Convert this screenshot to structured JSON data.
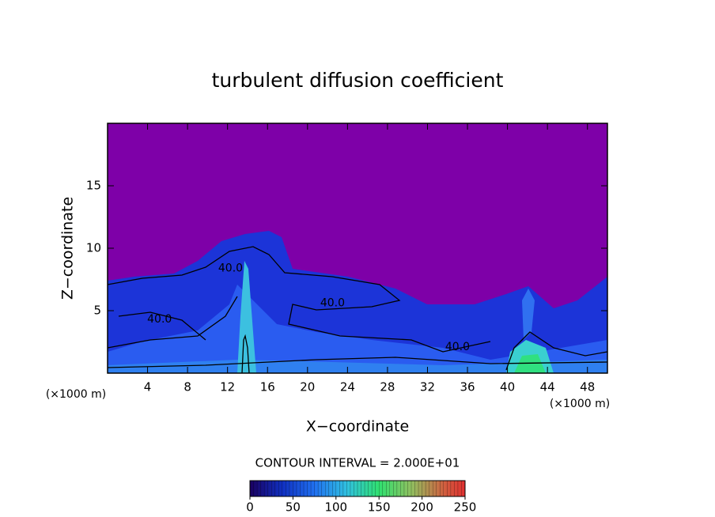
{
  "chart_data": {
    "type": "contour",
    "title": "turbulent diffusion coefficient",
    "xlabel": "X−coordinate",
    "ylabel": "Z−coordinate",
    "axis_unit": "(×1000 m)",
    "xlim": [
      0,
      50
    ],
    "ylim": [
      0,
      20
    ],
    "xticks": [
      4,
      8,
      12,
      16,
      20,
      24,
      28,
      32,
      36,
      40,
      44,
      48
    ],
    "yticks": [
      5,
      10,
      15
    ],
    "contour_interval": "CONTOUR INTERVAL = 2.000E+01",
    "contour_labels": [
      {
        "x": 12.3,
        "y": 8.4,
        "label": "40.0"
      },
      {
        "x": 22.5,
        "y": 5.6,
        "label": "40.0"
      },
      {
        "x": 5.2,
        "y": 4.3,
        "label": "40.0"
      },
      {
        "x": 35.0,
        "y": 2.1,
        "label": "40.0"
      }
    ],
    "colorbar": {
      "lim": [
        0,
        250
      ],
      "ticks": [
        0,
        50,
        100,
        150,
        200,
        250
      ]
    }
  }
}
